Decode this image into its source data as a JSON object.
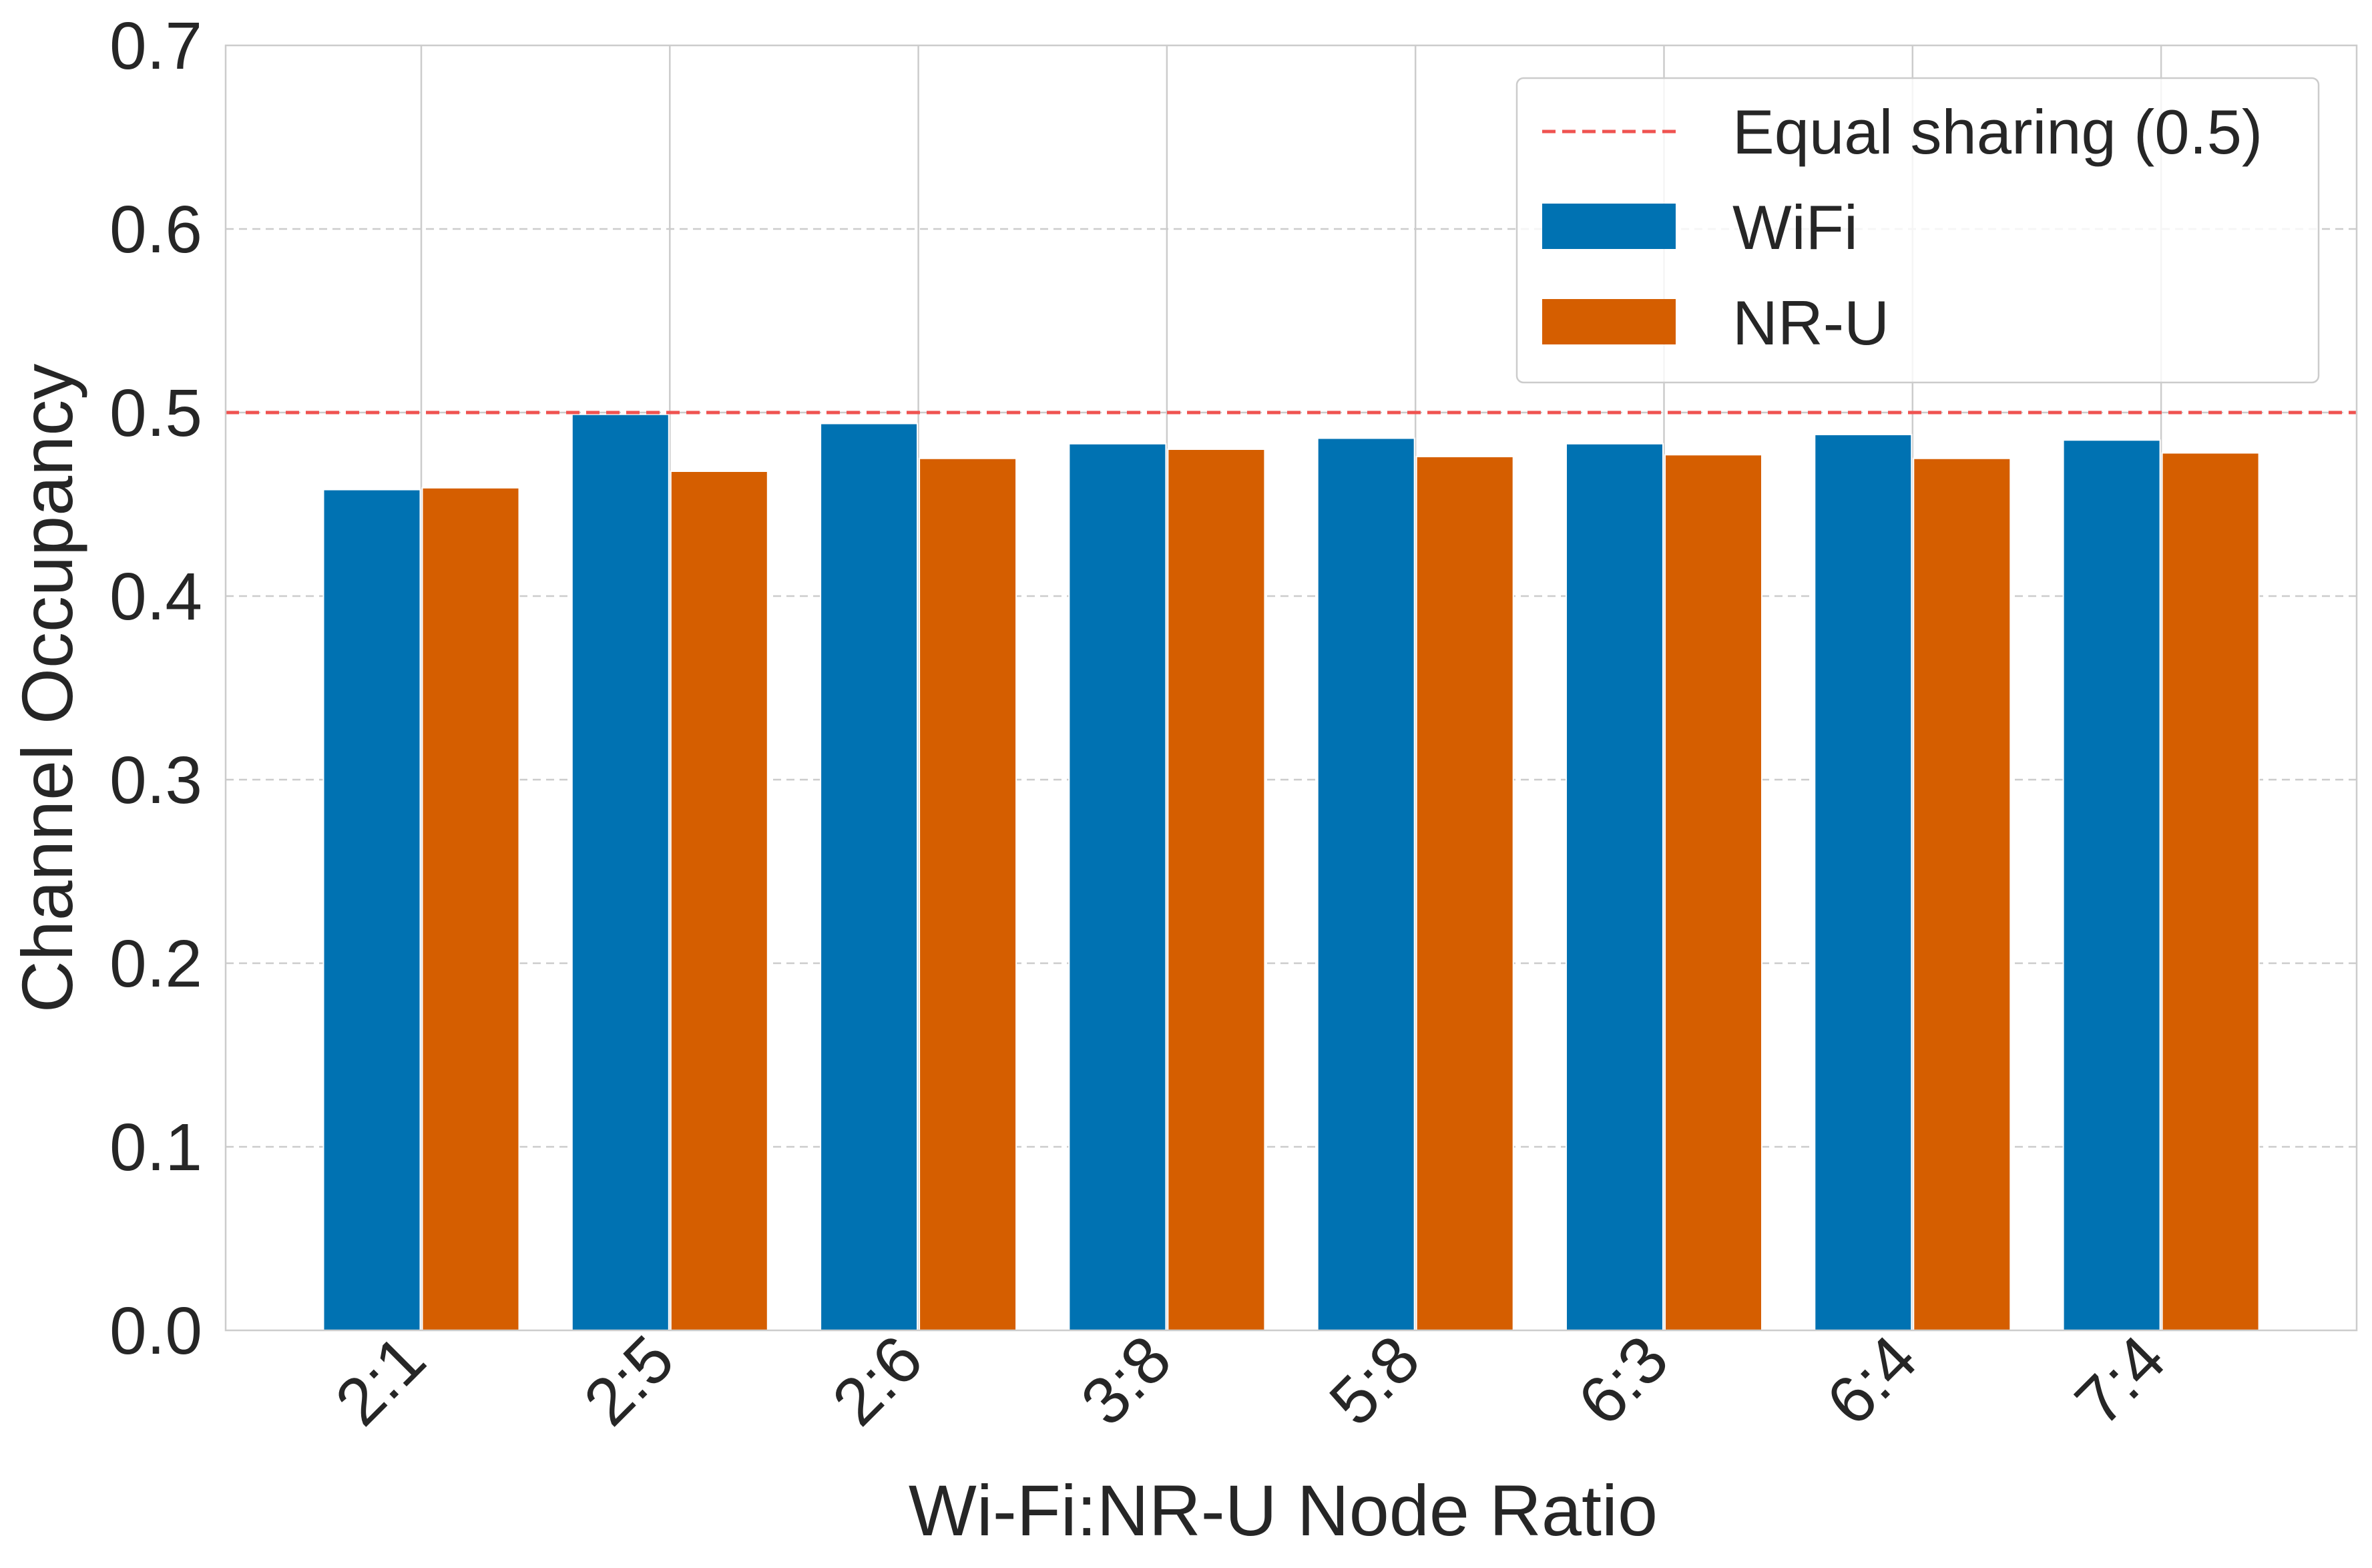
{
  "chart_data": {
    "type": "bar",
    "title": "",
    "xlabel": "Wi-Fi:NR-U Node Ratio",
    "ylabel": "Channel Occupancy",
    "ylim": [
      0.0,
      0.7
    ],
    "yticks": [
      "0.0",
      "0.1",
      "0.2",
      "0.3",
      "0.4",
      "0.5",
      "0.6",
      "0.7"
    ],
    "categories": [
      "2:1",
      "2:5",
      "2:6",
      "3:8",
      "5:8",
      "6:3",
      "6:4",
      "7:4"
    ],
    "series": [
      {
        "name": "WiFi",
        "color": "#0072B2",
        "values": [
          0.458,
          0.499,
          0.494,
          0.483,
          0.486,
          0.483,
          0.488,
          0.485
        ]
      },
      {
        "name": "NR-U",
        "color": "#D55E00",
        "values": [
          0.459,
          0.468,
          0.475,
          0.48,
          0.476,
          0.477,
          0.475,
          0.478
        ]
      }
    ],
    "reference_line": {
      "label": "Equal sharing (0.5)",
      "value": 0.5,
      "color": "#EF5350",
      "style": "dashed"
    },
    "grid": true,
    "legend_position": "top-right"
  }
}
